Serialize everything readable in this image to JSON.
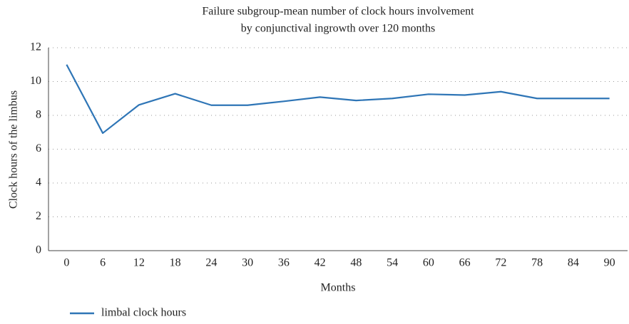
{
  "chart_data": {
    "type": "line",
    "title": [
      "Failure subgroup-mean number of clock hours involvement",
      "by conjunctival ingrowth over 120 months"
    ],
    "x_label": "Months",
    "y_label": "Clock hours of the limbus",
    "categories": [
      "0",
      "6",
      "12",
      "18",
      "24",
      "30",
      "36",
      "42",
      "48",
      "54",
      "60",
      "66",
      "72",
      "78",
      "84",
      "90"
    ],
    "series": [
      {
        "name": "limbal clock hours",
        "color": "#2e75b6",
        "values": [
          11.0,
          6.95,
          8.62,
          9.28,
          8.6,
          8.6,
          8.83,
          9.08,
          8.88,
          9.0,
          9.25,
          9.2,
          9.4,
          9.0,
          9.0,
          9.0
        ]
      }
    ],
    "ylim": [
      0,
      12
    ],
    "yticks": [
      0,
      2,
      4,
      6,
      8,
      10,
      12
    ],
    "grid": true,
    "legend": "bottom-left"
  }
}
